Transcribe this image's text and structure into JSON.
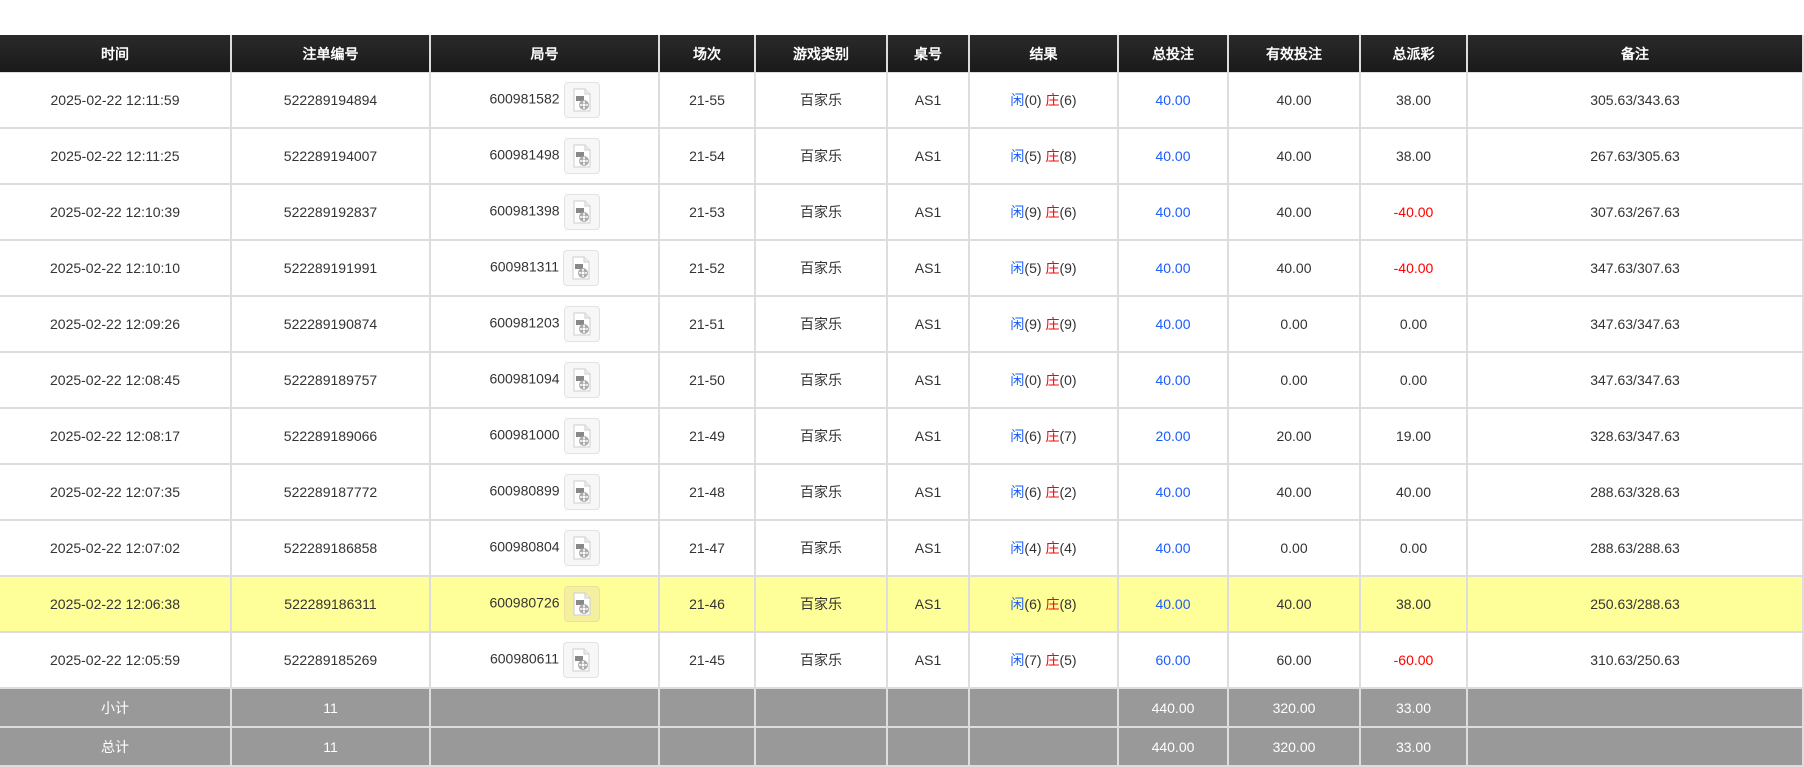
{
  "colors": {
    "header_bg": "#1c1c1c",
    "highlight_row": "#ffff99",
    "footer_bg": "#999999",
    "blue": "#1a5cff",
    "red": "#ff0000"
  },
  "columns": [
    "时间",
    "注单编号",
    "局号",
    "场次",
    "游戏类别",
    "桌号",
    "结果",
    "总投注",
    "有效投注",
    "总派彩",
    "备注"
  ],
  "rows": [
    {
      "time": "2025-02-22 12:11:59",
      "bet_id": "522289194894",
      "round": "600981582",
      "session": "21-55",
      "game": "百家乐",
      "table": "AS1",
      "player": "闲",
      "player_score": "(0)",
      "banker": "庄",
      "banker_score": "(6)",
      "total_bet": "40.00",
      "valid_bet": "40.00",
      "payout": "38.00",
      "payout_negative": false,
      "note": "305.63/343.63",
      "highlight": false
    },
    {
      "time": "2025-02-22 12:11:25",
      "bet_id": "522289194007",
      "round": "600981498",
      "session": "21-54",
      "game": "百家乐",
      "table": "AS1",
      "player": "闲",
      "player_score": "(5)",
      "banker": "庄",
      "banker_score": "(8)",
      "total_bet": "40.00",
      "valid_bet": "40.00",
      "payout": "38.00",
      "payout_negative": false,
      "note": "267.63/305.63",
      "highlight": false
    },
    {
      "time": "2025-02-22 12:10:39",
      "bet_id": "522289192837",
      "round": "600981398",
      "session": "21-53",
      "game": "百家乐",
      "table": "AS1",
      "player": "闲",
      "player_score": "(9)",
      "banker": "庄",
      "banker_score": "(6)",
      "total_bet": "40.00",
      "valid_bet": "40.00",
      "payout": "-40.00",
      "payout_negative": true,
      "note": "307.63/267.63",
      "highlight": false
    },
    {
      "time": "2025-02-22 12:10:10",
      "bet_id": "522289191991",
      "round": "600981311",
      "session": "21-52",
      "game": "百家乐",
      "table": "AS1",
      "player": "闲",
      "player_score": "(5)",
      "banker": "庄",
      "banker_score": "(9)",
      "total_bet": "40.00",
      "valid_bet": "40.00",
      "payout": "-40.00",
      "payout_negative": true,
      "note": "347.63/307.63",
      "highlight": false
    },
    {
      "time": "2025-02-22 12:09:26",
      "bet_id": "522289190874",
      "round": "600981203",
      "session": "21-51",
      "game": "百家乐",
      "table": "AS1",
      "player": "闲",
      "player_score": "(9)",
      "banker": "庄",
      "banker_score": "(9)",
      "total_bet": "40.00",
      "valid_bet": "0.00",
      "payout": "0.00",
      "payout_negative": false,
      "note": "347.63/347.63",
      "highlight": false
    },
    {
      "time": "2025-02-22 12:08:45",
      "bet_id": "522289189757",
      "round": "600981094",
      "session": "21-50",
      "game": "百家乐",
      "table": "AS1",
      "player": "闲",
      "player_score": "(0)",
      "banker": "庄",
      "banker_score": "(0)",
      "total_bet": "40.00",
      "valid_bet": "0.00",
      "payout": "0.00",
      "payout_negative": false,
      "note": "347.63/347.63",
      "highlight": false
    },
    {
      "time": "2025-02-22 12:08:17",
      "bet_id": "522289189066",
      "round": "600981000",
      "session": "21-49",
      "game": "百家乐",
      "table": "AS1",
      "player": "闲",
      "player_score": "(6)",
      "banker": "庄",
      "banker_score": "(7)",
      "total_bet": "20.00",
      "valid_bet": "20.00",
      "payout": "19.00",
      "payout_negative": false,
      "note": "328.63/347.63",
      "highlight": false
    },
    {
      "time": "2025-02-22 12:07:35",
      "bet_id": "522289187772",
      "round": "600980899",
      "session": "21-48",
      "game": "百家乐",
      "table": "AS1",
      "player": "闲",
      "player_score": "(6)",
      "banker": "庄",
      "banker_score": "(2)",
      "total_bet": "40.00",
      "valid_bet": "40.00",
      "payout": "40.00",
      "payout_negative": false,
      "note": "288.63/328.63",
      "highlight": false
    },
    {
      "time": "2025-02-22 12:07:02",
      "bet_id": "522289186858",
      "round": "600980804",
      "session": "21-47",
      "game": "百家乐",
      "table": "AS1",
      "player": "闲",
      "player_score": "(4)",
      "banker": "庄",
      "banker_score": "(4)",
      "total_bet": "40.00",
      "valid_bet": "0.00",
      "payout": "0.00",
      "payout_negative": false,
      "note": "288.63/288.63",
      "highlight": false
    },
    {
      "time": "2025-02-22 12:06:38",
      "bet_id": "522289186311",
      "round": "600980726",
      "session": "21-46",
      "game": "百家乐",
      "table": "AS1",
      "player": "闲",
      "player_score": "(6)",
      "banker": "庄",
      "banker_score": "(8)",
      "total_bet": "40.00",
      "valid_bet": "40.00",
      "payout": "38.00",
      "payout_negative": false,
      "note": "250.63/288.63",
      "highlight": true
    },
    {
      "time": "2025-02-22 12:05:59",
      "bet_id": "522289185269",
      "round": "600980611",
      "session": "21-45",
      "game": "百家乐",
      "table": "AS1",
      "player": "闲",
      "player_score": "(7)",
      "banker": "庄",
      "banker_score": "(5)",
      "total_bet": "60.00",
      "valid_bet": "60.00",
      "payout": "-60.00",
      "payout_negative": true,
      "note": "310.63/250.63",
      "highlight": false
    }
  ],
  "footer": [
    {
      "label": "小计",
      "count": "11",
      "total_bet": "440.00",
      "valid_bet": "320.00",
      "payout": "33.00"
    },
    {
      "label": "总计",
      "count": "11",
      "total_bet": "440.00",
      "valid_bet": "320.00",
      "payout": "33.00"
    }
  ],
  "icons": {
    "replay": "video-file-icon"
  }
}
